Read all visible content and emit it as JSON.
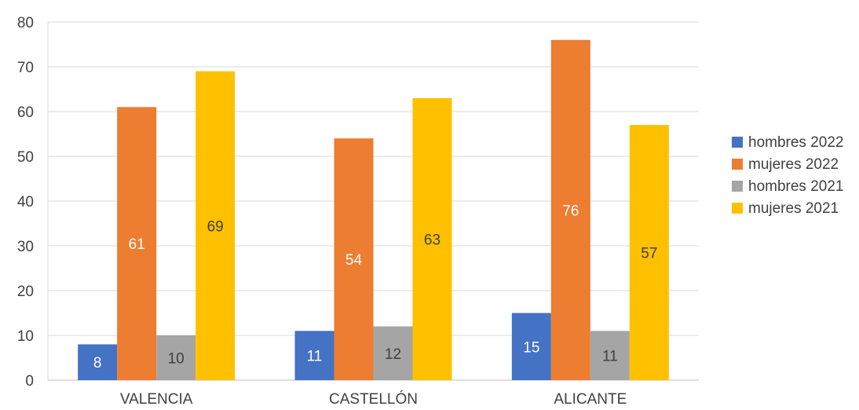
{
  "chart_data": {
    "type": "bar",
    "categories": [
      "VALENCIA",
      "CASTELLÓN",
      "ALICANTE"
    ],
    "series": [
      {
        "name": "hombres 2022",
        "values": [
          8,
          11,
          15
        ],
        "color": "#4472C4",
        "label_color": "#ffffff"
      },
      {
        "name": "mujeres 2022",
        "values": [
          61,
          54,
          76
        ],
        "color": "#ED7D31",
        "label_color": "#ffffff"
      },
      {
        "name": "hombres 2021",
        "values": [
          10,
          12,
          11
        ],
        "color": "#A5A5A5",
        "label_color": "#404040"
      },
      {
        "name": "mujeres 2021",
        "values": [
          69,
          63,
          57
        ],
        "color": "#FFC000",
        "label_color": "#404040"
      }
    ],
    "ylim": [
      0,
      80
    ],
    "yticks": [
      0,
      10,
      20,
      30,
      40,
      50,
      60,
      70,
      80
    ],
    "grid": true,
    "legend_position": "right",
    "title": "",
    "xlabel": "",
    "ylabel": ""
  }
}
